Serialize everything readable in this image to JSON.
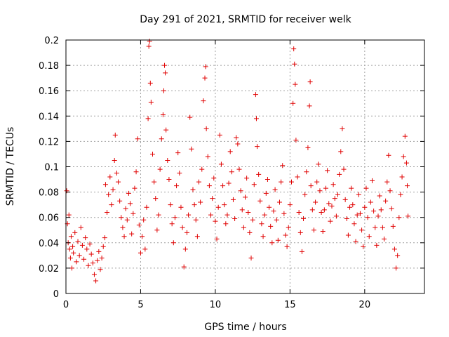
{
  "chart_data": {
    "type": "scatter",
    "title": "Day 291 of 2021, SRMTID for receiver welk",
    "xlabel": "GPS time / hours",
    "ylabel": "SRMTID / TECUs",
    "xlim": [
      0,
      24
    ],
    "ylim": [
      0,
      0.2
    ],
    "x_ticks": [
      0,
      5,
      10,
      15,
      20
    ],
    "x_tick_labels": [
      "0",
      "5",
      "10",
      "15",
      "20"
    ],
    "y_ticks": [
      0,
      0.02,
      0.04,
      0.06,
      0.08,
      0.1,
      0.12,
      0.14,
      0.16,
      0.18,
      0.2
    ],
    "y_tick_labels": [
      "0",
      "0.02",
      "0.04",
      "0.06",
      "0.08",
      "0.1",
      "0.12",
      "0.14",
      "0.16",
      "0.18",
      "0.2"
    ],
    "grid": true,
    "marker": "+",
    "color": "#e00000",
    "series": [
      {
        "name": "SRMTID",
        "points": [
          [
            0.05,
            0.081
          ],
          [
            0.1,
            0.055
          ],
          [
            0.15,
            0.04
          ],
          [
            0.2,
            0.062
          ],
          [
            0.25,
            0.035
          ],
          [
            0.3,
            0.028
          ],
          [
            0.35,
            0.045
          ],
          [
            0.4,
            0.02
          ],
          [
            0.45,
            0.037
          ],
          [
            0.5,
            0.032
          ],
          [
            0.6,
            0.048
          ],
          [
            0.7,
            0.025
          ],
          [
            0.8,
            0.041
          ],
          [
            0.9,
            0.03
          ],
          [
            1.0,
            0.052
          ],
          [
            1.1,
            0.038
          ],
          [
            1.2,
            0.027
          ],
          [
            1.3,
            0.044
          ],
          [
            1.4,
            0.035
          ],
          [
            1.5,
            0.022
          ],
          [
            1.6,
            0.039
          ],
          [
            1.7,
            0.031
          ],
          [
            1.8,
            0.024
          ],
          [
            1.9,
            0.015
          ],
          [
            2.0,
            0.01
          ],
          [
            2.1,
            0.026
          ],
          [
            2.2,
            0.033
          ],
          [
            2.3,
            0.019
          ],
          [
            2.4,
            0.028
          ],
          [
            2.5,
            0.037
          ],
          [
            2.6,
            0.044
          ],
          [
            2.65,
            0.086
          ],
          [
            2.75,
            0.064
          ],
          [
            2.85,
            0.078
          ],
          [
            2.95,
            0.092
          ],
          [
            3.05,
            0.07
          ],
          [
            3.15,
            0.082
          ],
          [
            3.25,
            0.105
          ],
          [
            3.3,
            0.125
          ],
          [
            3.4,
            0.095
          ],
          [
            3.5,
            0.088
          ],
          [
            3.6,
            0.073
          ],
          [
            3.7,
            0.06
          ],
          [
            3.8,
            0.052
          ],
          [
            3.9,
            0.045
          ],
          [
            4.0,
            0.067
          ],
          [
            4.1,
            0.058
          ],
          [
            4.2,
            0.079
          ],
          [
            4.3,
            0.071
          ],
          [
            4.4,
            0.047
          ],
          [
            4.5,
            0.063
          ],
          [
            4.6,
            0.083
          ],
          [
            4.7,
            0.096
          ],
          [
            4.8,
            0.122
          ],
          [
            4.9,
            0.054
          ],
          [
            5.0,
            0.032
          ],
          [
            5.1,
            0.045
          ],
          [
            5.2,
            0.058
          ],
          [
            5.3,
            0.035
          ],
          [
            5.4,
            0.068
          ],
          [
            5.5,
            0.138
          ],
          [
            5.55,
            0.195
          ],
          [
            5.6,
            0.199
          ],
          [
            5.65,
            0.166
          ],
          [
            5.7,
            0.151
          ],
          [
            5.8,
            0.11
          ],
          [
            5.9,
            0.088
          ],
          [
            6.0,
            0.075
          ],
          [
            6.1,
            0.05
          ],
          [
            6.2,
            0.062
          ],
          [
            6.3,
            0.098
          ],
          [
            6.4,
            0.122
          ],
          [
            6.5,
            0.141
          ],
          [
            6.55,
            0.16
          ],
          [
            6.6,
            0.18
          ],
          [
            6.65,
            0.174
          ],
          [
            6.7,
            0.129
          ],
          [
            6.8,
            0.105
          ],
          [
            6.9,
            0.09
          ],
          [
            7.0,
            0.07
          ],
          [
            7.1,
            0.055
          ],
          [
            7.2,
            0.04
          ],
          [
            7.3,
            0.06
          ],
          [
            7.4,
            0.085
          ],
          [
            7.5,
            0.111
          ],
          [
            7.6,
            0.095
          ],
          [
            7.7,
            0.068
          ],
          [
            7.8,
            0.052
          ],
          [
            7.9,
            0.021
          ],
          [
            8.0,
            0.035
          ],
          [
            8.1,
            0.048
          ],
          [
            8.2,
            0.062
          ],
          [
            8.3,
            0.139
          ],
          [
            8.4,
            0.114
          ],
          [
            8.5,
            0.082
          ],
          [
            8.6,
            0.07
          ],
          [
            8.7,
            0.058
          ],
          [
            8.8,
            0.045
          ],
          [
            8.9,
            0.088
          ],
          [
            9.0,
            0.072
          ],
          [
            9.1,
            0.098
          ],
          [
            9.2,
            0.152
          ],
          [
            9.3,
            0.17
          ],
          [
            9.35,
            0.179
          ],
          [
            9.4,
            0.13
          ],
          [
            9.5,
            0.108
          ],
          [
            9.6,
            0.085
          ],
          [
            9.7,
            0.062
          ],
          [
            9.8,
            0.075
          ],
          [
            9.9,
            0.091
          ],
          [
            10.0,
            0.057
          ],
          [
            10.1,
            0.043
          ],
          [
            10.2,
            0.068
          ],
          [
            10.3,
            0.125
          ],
          [
            10.4,
            0.102
          ],
          [
            10.5,
            0.085
          ],
          [
            10.6,
            0.07
          ],
          [
            10.7,
            0.055
          ],
          [
            10.8,
            0.062
          ],
          [
            10.9,
            0.087
          ],
          [
            11.0,
            0.112
          ],
          [
            11.1,
            0.096
          ],
          [
            11.2,
            0.074
          ],
          [
            11.3,
            0.059
          ],
          [
            11.4,
            0.123
          ],
          [
            11.5,
            0.118
          ],
          [
            11.6,
            0.098
          ],
          [
            11.7,
            0.081
          ],
          [
            11.8,
            0.066
          ],
          [
            11.9,
            0.052
          ],
          [
            12.0,
            0.076
          ],
          [
            12.1,
            0.091
          ],
          [
            12.2,
            0.064
          ],
          [
            12.3,
            0.048
          ],
          [
            12.4,
            0.028
          ],
          [
            12.5,
            0.058
          ],
          [
            12.6,
            0.086
          ],
          [
            12.7,
            0.157
          ],
          [
            12.75,
            0.138
          ],
          [
            12.8,
            0.116
          ],
          [
            12.9,
            0.094
          ],
          [
            13.0,
            0.073
          ],
          [
            13.1,
            0.055
          ],
          [
            13.2,
            0.045
          ],
          [
            13.3,
            0.062
          ],
          [
            13.4,
            0.079
          ],
          [
            13.5,
            0.09
          ],
          [
            13.6,
            0.068
          ],
          [
            13.7,
            0.053
          ],
          [
            13.8,
            0.04
          ],
          [
            13.9,
            0.065
          ],
          [
            14.0,
            0.082
          ],
          [
            14.1,
            0.058
          ],
          [
            14.2,
            0.042
          ],
          [
            14.3,
            0.072
          ],
          [
            14.4,
            0.088
          ],
          [
            14.5,
            0.101
          ],
          [
            14.6,
            0.063
          ],
          [
            14.7,
            0.046
          ],
          [
            14.8,
            0.037
          ],
          [
            14.9,
            0.052
          ],
          [
            15.0,
            0.07
          ],
          [
            15.1,
            0.088
          ],
          [
            15.2,
            0.15
          ],
          [
            15.25,
            0.193
          ],
          [
            15.3,
            0.181
          ],
          [
            15.35,
            0.165
          ],
          [
            15.4,
            0.121
          ],
          [
            15.5,
            0.092
          ],
          [
            15.6,
            0.064
          ],
          [
            15.7,
            0.048
          ],
          [
            15.8,
            0.033
          ],
          [
            15.9,
            0.059
          ],
          [
            16.0,
            0.078
          ],
          [
            16.1,
            0.096
          ],
          [
            16.2,
            0.115
          ],
          [
            16.3,
            0.148
          ],
          [
            16.35,
            0.167
          ],
          [
            16.4,
            0.085
          ],
          [
            16.5,
            0.066
          ],
          [
            16.6,
            0.05
          ],
          [
            16.7,
            0.072
          ],
          [
            16.8,
            0.088
          ],
          [
            16.9,
            0.102
          ],
          [
            17.0,
            0.081
          ],
          [
            17.1,
            0.064
          ],
          [
            17.2,
            0.049
          ],
          [
            17.3,
            0.066
          ],
          [
            17.4,
            0.083
          ],
          [
            17.5,
            0.097
          ],
          [
            17.6,
            0.071
          ],
          [
            17.7,
            0.057
          ],
          [
            17.8,
            0.069
          ],
          [
            17.9,
            0.086
          ],
          [
            18.0,
            0.075
          ],
          [
            18.1,
            0.061
          ],
          [
            18.2,
            0.078
          ],
          [
            18.3,
            0.094
          ],
          [
            18.4,
            0.112
          ],
          [
            18.5,
            0.13
          ],
          [
            18.6,
            0.098
          ],
          [
            18.7,
            0.074
          ],
          [
            18.8,
            0.059
          ],
          [
            18.9,
            0.046
          ],
          [
            19.0,
            0.068
          ],
          [
            19.1,
            0.083
          ],
          [
            19.2,
            0.07
          ],
          [
            19.3,
            0.055
          ],
          [
            19.4,
            0.041
          ],
          [
            19.5,
            0.062
          ],
          [
            19.6,
            0.078
          ],
          [
            19.7,
            0.063
          ],
          [
            19.8,
            0.05
          ],
          [
            19.9,
            0.037
          ],
          [
            20.0,
            0.068
          ],
          [
            20.1,
            0.083
          ],
          [
            20.2,
            0.06
          ],
          [
            20.3,
            0.045
          ],
          [
            20.4,
            0.072
          ],
          [
            20.5,
            0.089
          ],
          [
            20.6,
            0.065
          ],
          [
            20.7,
            0.052
          ],
          [
            20.8,
            0.038
          ],
          [
            20.9,
            0.061
          ],
          [
            21.0,
            0.077
          ],
          [
            21.1,
            0.066
          ],
          [
            21.2,
            0.052
          ],
          [
            21.3,
            0.043
          ],
          [
            21.4,
            0.073
          ],
          [
            21.5,
            0.088
          ],
          [
            21.6,
            0.109
          ],
          [
            21.7,
            0.081
          ],
          [
            21.8,
            0.067
          ],
          [
            21.9,
            0.053
          ],
          [
            22.0,
            0.035
          ],
          [
            22.1,
            0.02
          ],
          [
            22.2,
            0.03
          ],
          [
            22.3,
            0.06
          ],
          [
            22.4,
            0.078
          ],
          [
            22.5,
            0.092
          ],
          [
            22.6,
            0.108
          ],
          [
            22.7,
            0.124
          ],
          [
            22.8,
            0.103
          ],
          [
            22.85,
            0.085
          ],
          [
            22.9,
            0.061
          ]
        ]
      }
    ]
  }
}
